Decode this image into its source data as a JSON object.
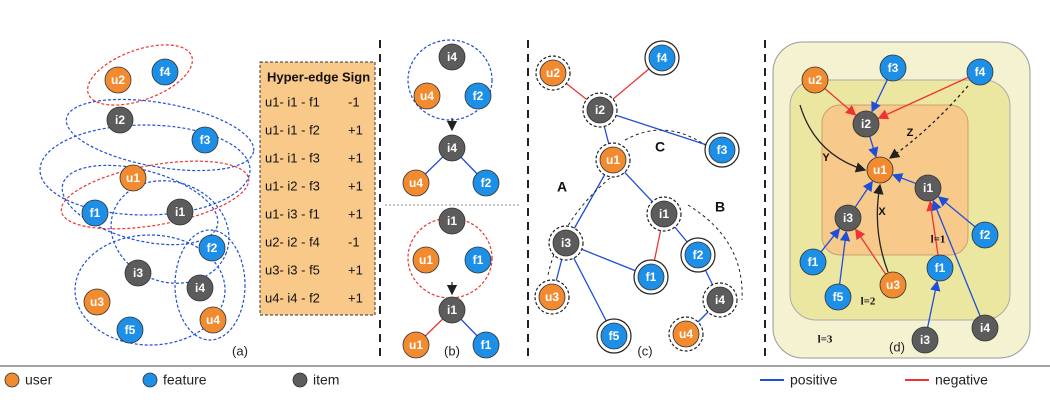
{
  "panel_a": {
    "caption": "(a)",
    "nodes": [
      "u2",
      "f4",
      "i2",
      "f3",
      "u1",
      "f1",
      "i1",
      "f2",
      "i3",
      "i4",
      "u3",
      "u4",
      "f5"
    ],
    "table": {
      "header": [
        "Hyper-edge",
        "Sign"
      ],
      "rows": [
        [
          "u1- i1 - f1",
          "-1"
        ],
        [
          "u1- i1 - f2",
          "+1"
        ],
        [
          "u1- i1 - f3",
          "+1"
        ],
        [
          "u1- i2 - f3",
          "+1"
        ],
        [
          "u1- i3 - f1",
          "+1"
        ],
        [
          "u2- i2 - f4",
          "-1"
        ],
        [
          "u3- i3 - f5",
          "+1"
        ],
        [
          "u4- i4 - f2",
          "+1"
        ]
      ]
    }
  },
  "panel_b": {
    "caption": "(b)",
    "top_group": [
      "i4",
      "u4",
      "f2"
    ],
    "top_result": [
      "i4",
      "u4",
      "f2"
    ],
    "bottom_group": [
      "i1",
      "u1",
      "f1"
    ],
    "bottom_result": [
      "i1",
      "u1",
      "f1"
    ]
  },
  "panel_c": {
    "caption": "(c)",
    "nodes": [
      "u2",
      "f4",
      "i2",
      "f3",
      "u1",
      "i1",
      "i3",
      "f2",
      "f1",
      "i4",
      "u3",
      "f5",
      "u4"
    ],
    "region_labels": [
      "A",
      "B",
      "C"
    ]
  },
  "panel_d": {
    "caption": "(d)",
    "nodes": [
      "u2",
      "f3",
      "f4",
      "i2",
      "u1",
      "i1",
      "i3",
      "f2",
      "f1",
      "u3",
      "f5",
      "f1",
      "i3",
      "i4"
    ],
    "path_labels": [
      "Y",
      "Z",
      "X"
    ],
    "level_labels": [
      "l=1",
      "l=2",
      "l=3"
    ]
  },
  "legend": {
    "node_types": [
      "user",
      "feature",
      "item"
    ],
    "edge_types": [
      "positive",
      "negative"
    ]
  }
}
